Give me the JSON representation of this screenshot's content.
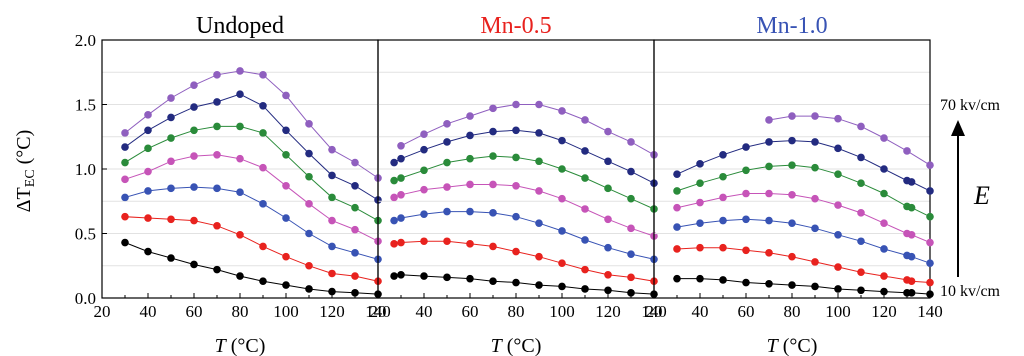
{
  "figure": {
    "ylabel_main": "ΔT",
    "ylabel_sub": "EC",
    "ylabel_unit": " (°C)",
    "xlabel_var": "T",
    "xlabel_unit": " (°C)",
    "side_top": "70 kv/cm",
    "side_bottom": "10 kv/cm",
    "side_symbol": "E"
  },
  "chart_data": [
    {
      "type": "line",
      "title": "Undoped",
      "title_color": "#000000",
      "xlim": [
        20,
        140
      ],
      "ylim": [
        0,
        2.0
      ],
      "xticks": [
        "20",
        "40",
        "60",
        "80",
        "100",
        "120",
        "140"
      ],
      "yticks": [
        "0.0",
        "0.5",
        "1.0",
        "1.5",
        "2.0"
      ],
      "grid": true,
      "series": [
        {
          "color": "#000000",
          "x": [
            30,
            40,
            50,
            60,
            70,
            80,
            90,
            100,
            110,
            120,
            130,
            140
          ],
          "y": [
            0.43,
            0.36,
            0.31,
            0.26,
            0.22,
            0.17,
            0.13,
            0.1,
            0.07,
            0.05,
            0.04,
            0.03
          ]
        },
        {
          "color": "#e8221e",
          "x": [
            30,
            40,
            50,
            60,
            70,
            80,
            90,
            100,
            110,
            120,
            130,
            140
          ],
          "y": [
            0.63,
            0.62,
            0.61,
            0.6,
            0.56,
            0.49,
            0.4,
            0.32,
            0.25,
            0.19,
            0.17,
            0.13
          ]
        },
        {
          "color": "#3853b4",
          "x": [
            30,
            40,
            50,
            60,
            70,
            80,
            90,
            100,
            110,
            120,
            130,
            140
          ],
          "y": [
            0.78,
            0.83,
            0.85,
            0.86,
            0.85,
            0.82,
            0.73,
            0.62,
            0.5,
            0.4,
            0.35,
            0.3
          ]
        },
        {
          "color": "#c654b8",
          "x": [
            30,
            40,
            50,
            60,
            70,
            80,
            90,
            100,
            110,
            120,
            130,
            140
          ],
          "y": [
            0.92,
            0.98,
            1.06,
            1.1,
            1.11,
            1.08,
            1.01,
            0.87,
            0.73,
            0.6,
            0.53,
            0.44
          ]
        },
        {
          "color": "#2a8b3a",
          "x": [
            30,
            40,
            50,
            60,
            70,
            80,
            90,
            100,
            110,
            120,
            130,
            140
          ],
          "y": [
            1.05,
            1.16,
            1.24,
            1.3,
            1.33,
            1.33,
            1.28,
            1.11,
            0.94,
            0.78,
            0.7,
            0.6
          ]
        },
        {
          "color": "#232b80",
          "x": [
            30,
            40,
            50,
            60,
            70,
            80,
            90,
            100,
            110,
            120,
            130,
            140
          ],
          "y": [
            1.17,
            1.3,
            1.4,
            1.48,
            1.52,
            1.58,
            1.49,
            1.3,
            1.12,
            0.95,
            0.87,
            0.76
          ]
        },
        {
          "color": "#8f5fbf",
          "x": [
            30,
            40,
            50,
            60,
            70,
            80,
            90,
            100,
            110,
            120,
            130,
            140
          ],
          "y": [
            1.28,
            1.42,
            1.55,
            1.65,
            1.73,
            1.76,
            1.73,
            1.57,
            1.35,
            1.15,
            1.05,
            0.93
          ]
        }
      ]
    },
    {
      "type": "line",
      "title": "Mn-0.5",
      "title_color": "#e8221e",
      "xlim": [
        20,
        140
      ],
      "ylim": [
        0,
        2.0
      ],
      "xticks": [
        "20",
        "40",
        "60",
        "80",
        "100",
        "120",
        "140"
      ],
      "grid": true,
      "series": [
        {
          "color": "#000000",
          "x": [
            27,
            30,
            40,
            50,
            60,
            70,
            80,
            90,
            100,
            110,
            120,
            130,
            140
          ],
          "y": [
            0.17,
            0.18,
            0.17,
            0.16,
            0.15,
            0.13,
            0.12,
            0.1,
            0.09,
            0.07,
            0.06,
            0.04,
            0.03
          ]
        },
        {
          "color": "#e8221e",
          "x": [
            27,
            30,
            40,
            50,
            60,
            70,
            80,
            90,
            100,
            110,
            120,
            130,
            140
          ],
          "y": [
            0.42,
            0.43,
            0.44,
            0.44,
            0.42,
            0.4,
            0.36,
            0.32,
            0.27,
            0.22,
            0.18,
            0.16,
            0.13
          ]
        },
        {
          "color": "#3853b4",
          "x": [
            27,
            30,
            40,
            50,
            60,
            70,
            80,
            90,
            100,
            110,
            120,
            130,
            140
          ],
          "y": [
            0.6,
            0.62,
            0.65,
            0.67,
            0.67,
            0.66,
            0.63,
            0.58,
            0.52,
            0.45,
            0.39,
            0.34,
            0.3
          ]
        },
        {
          "color": "#c654b8",
          "x": [
            27,
            30,
            40,
            50,
            60,
            70,
            80,
            90,
            100,
            110,
            120,
            130,
            140
          ],
          "y": [
            0.78,
            0.8,
            0.84,
            0.86,
            0.88,
            0.88,
            0.87,
            0.83,
            0.77,
            0.69,
            0.61,
            0.54,
            0.48
          ]
        },
        {
          "color": "#2a8b3a",
          "x": [
            27,
            30,
            40,
            50,
            60,
            70,
            80,
            90,
            100,
            110,
            120,
            130,
            140
          ],
          "y": [
            0.91,
            0.93,
            0.99,
            1.05,
            1.08,
            1.1,
            1.09,
            1.06,
            1.0,
            0.93,
            0.85,
            0.77,
            0.69
          ]
        },
        {
          "color": "#232b80",
          "x": [
            27,
            30,
            40,
            50,
            60,
            70,
            80,
            90,
            100,
            110,
            120,
            130,
            140
          ],
          "y": [
            1.05,
            1.08,
            1.15,
            1.21,
            1.26,
            1.29,
            1.3,
            1.28,
            1.22,
            1.14,
            1.06,
            0.98,
            0.89
          ]
        },
        {
          "color": "#8f5fbf",
          "x": [
            30,
            40,
            50,
            60,
            70,
            80,
            90,
            100,
            110,
            120,
            130,
            140
          ],
          "y": [
            1.18,
            1.27,
            1.35,
            1.41,
            1.47,
            1.5,
            1.5,
            1.45,
            1.38,
            1.29,
            1.21,
            1.11
          ]
        }
      ]
    },
    {
      "type": "line",
      "title": "Mn-1.0",
      "title_color": "#3853b4",
      "xlim": [
        20,
        140
      ],
      "ylim": [
        0,
        2.0
      ],
      "xticks": [
        "20",
        "40",
        "60",
        "80",
        "100",
        "120",
        "140"
      ],
      "grid": true,
      "series": [
        {
          "color": "#000000",
          "x": [
            30,
            40,
            50,
            60,
            70,
            80,
            90,
            100,
            110,
            120,
            130,
            132,
            140
          ],
          "y": [
            0.15,
            0.15,
            0.14,
            0.12,
            0.11,
            0.1,
            0.09,
            0.07,
            0.06,
            0.05,
            0.04,
            0.04,
            0.03
          ]
        },
        {
          "color": "#e8221e",
          "x": [
            30,
            40,
            50,
            60,
            70,
            80,
            90,
            100,
            110,
            120,
            130,
            132,
            140
          ],
          "y": [
            0.38,
            0.39,
            0.39,
            0.37,
            0.35,
            0.32,
            0.28,
            0.24,
            0.2,
            0.17,
            0.14,
            0.13,
            0.12
          ]
        },
        {
          "color": "#3853b4",
          "x": [
            30,
            40,
            50,
            60,
            70,
            80,
            90,
            100,
            110,
            120,
            130,
            132,
            140
          ],
          "y": [
            0.55,
            0.58,
            0.6,
            0.61,
            0.6,
            0.58,
            0.54,
            0.49,
            0.44,
            0.38,
            0.33,
            0.32,
            0.27
          ]
        },
        {
          "color": "#c654b8",
          "x": [
            30,
            40,
            50,
            60,
            70,
            80,
            90,
            100,
            110,
            120,
            130,
            132,
            140
          ],
          "y": [
            0.7,
            0.74,
            0.78,
            0.81,
            0.81,
            0.8,
            0.77,
            0.72,
            0.66,
            0.58,
            0.5,
            0.49,
            0.43
          ]
        },
        {
          "color": "#2a8b3a",
          "x": [
            30,
            40,
            50,
            60,
            70,
            80,
            90,
            100,
            110,
            120,
            130,
            132,
            140
          ],
          "y": [
            0.83,
            0.89,
            0.94,
            0.99,
            1.02,
            1.03,
            1.01,
            0.96,
            0.89,
            0.81,
            0.71,
            0.7,
            0.63
          ]
        },
        {
          "color": "#232b80",
          "x": [
            30,
            40,
            50,
            60,
            70,
            80,
            90,
            100,
            110,
            120,
            130,
            132,
            140
          ],
          "y": [
            0.96,
            1.04,
            1.11,
            1.17,
            1.21,
            1.22,
            1.21,
            1.16,
            1.09,
            1.0,
            0.91,
            0.9,
            0.83
          ]
        },
        {
          "color": "#8f5fbf",
          "x": [
            70,
            80,
            90,
            100,
            110,
            120,
            130,
            140
          ],
          "y": [
            1.38,
            1.41,
            1.41,
            1.39,
            1.33,
            1.24,
            1.14,
            1.03
          ]
        }
      ]
    }
  ]
}
